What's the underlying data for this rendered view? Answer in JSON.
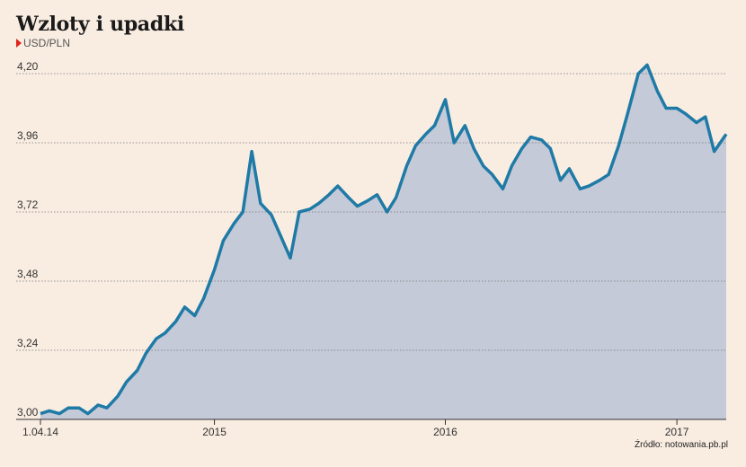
{
  "title": "Wzloty i upadki",
  "subtitle": "USD/PLN",
  "source": "Źródło: notowania.pb.pl",
  "chart_data": {
    "type": "area",
    "title": "Wzloty i upadki",
    "ylabel": "USD/PLN",
    "xlabel": "",
    "ylim": [
      3.0,
      4.2
    ],
    "yticks": [
      "3,00",
      "3,24",
      "3,48",
      "3,72",
      "3,96",
      "4,20"
    ],
    "xlim": [
      "2014-04-01",
      "2017-03-20"
    ],
    "xticks": [
      {
        "date": "2014-04-01",
        "label": "1.04.14"
      },
      {
        "date": "2015-01-01",
        "label": "2015"
      },
      {
        "date": "2016-01-01",
        "label": "2016"
      },
      {
        "date": "2017-01-01",
        "label": "2017"
      }
    ],
    "grid": "horizontal",
    "colors": {
      "line": "#1f7aa6",
      "fill": "#c5cad8"
    },
    "series": [
      {
        "x": [
          "2014-04-01",
          "2014-04-15",
          "2014-05-01",
          "2014-05-15",
          "2014-06-01",
          "2014-06-15",
          "2014-07-01",
          "2014-07-15",
          "2014-08-01",
          "2014-08-15",
          "2014-09-01",
          "2014-09-15",
          "2014-10-01",
          "2014-10-15",
          "2014-11-01",
          "2014-11-15",
          "2014-12-01",
          "2014-12-15",
          "2015-01-01",
          "2015-01-15",
          "2015-02-01",
          "2015-02-15",
          "2015-03-01",
          "2015-03-15",
          "2015-04-01",
          "2015-04-15",
          "2015-05-01",
          "2015-05-15",
          "2015-06-01",
          "2015-06-15",
          "2015-07-01",
          "2015-07-15",
          "2015-08-01",
          "2015-08-15",
          "2015-09-01",
          "2015-09-15",
          "2015-10-01",
          "2015-10-15",
          "2015-11-01",
          "2015-11-15",
          "2015-12-01",
          "2015-12-15",
          "2016-01-01",
          "2016-01-15",
          "2016-02-01",
          "2016-02-15",
          "2016-03-01",
          "2016-03-15",
          "2016-04-01",
          "2016-04-15",
          "2016-05-01",
          "2016-05-15",
          "2016-06-01",
          "2016-06-15",
          "2016-07-01",
          "2016-07-15",
          "2016-08-01",
          "2016-08-15",
          "2016-09-01",
          "2016-09-15",
          "2016-10-01",
          "2016-10-15",
          "2016-11-01",
          "2016-11-15",
          "2016-12-01",
          "2016-12-15",
          "2017-01-01",
          "2017-01-15",
          "2017-02-01",
          "2017-02-15",
          "2017-03-01",
          "2017-03-20"
        ],
        "values": [
          3.02,
          3.03,
          3.02,
          3.04,
          3.04,
          3.02,
          3.05,
          3.04,
          3.08,
          3.13,
          3.17,
          3.23,
          3.28,
          3.3,
          3.34,
          3.39,
          3.36,
          3.42,
          3.52,
          3.62,
          3.68,
          3.72,
          3.93,
          3.75,
          3.71,
          3.64,
          3.56,
          3.72,
          3.73,
          3.75,
          3.78,
          3.81,
          3.77,
          3.74,
          3.76,
          3.78,
          3.72,
          3.77,
          3.88,
          3.95,
          3.99,
          4.02,
          4.11,
          3.96,
          4.02,
          3.94,
          3.88,
          3.85,
          3.8,
          3.88,
          3.94,
          3.98,
          3.97,
          3.94,
          3.83,
          3.87,
          3.8,
          3.81,
          3.83,
          3.85,
          3.95,
          4.06,
          4.2,
          4.23,
          4.14,
          4.08,
          4.08,
          4.06,
          4.03,
          4.05,
          3.93,
          3.99
        ]
      }
    ]
  }
}
